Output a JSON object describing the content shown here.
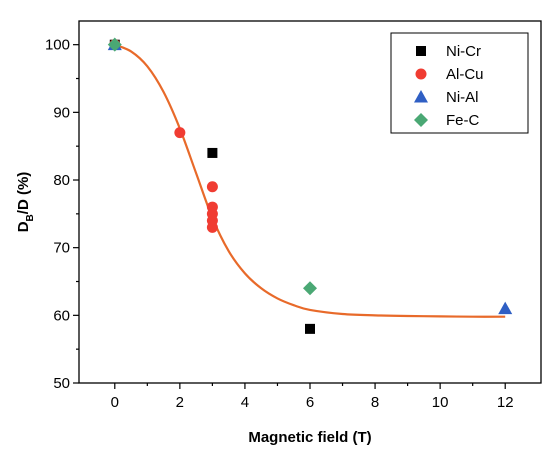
{
  "chart_data": {
    "type": "scatter",
    "xlabel": "Magnetic field (T)",
    "ylabel_main": "D",
    "ylabel_sub": "B",
    "ylabel_rest": "/D (%)",
    "xlim": [
      -1.1,
      13.1
    ],
    "ylim": [
      50,
      103.5
    ],
    "xticks": [
      0,
      2,
      4,
      6,
      8,
      10,
      12
    ],
    "yticks": [
      50,
      60,
      70,
      80,
      90,
      100
    ],
    "series": [
      {
        "name": "Ni-Cr",
        "marker": "square",
        "color": "#000000",
        "points": [
          [
            0,
            100
          ],
          [
            3,
            84
          ],
          [
            6,
            58
          ]
        ]
      },
      {
        "name": "Al-Cu",
        "marker": "circle",
        "color": "#f03c32",
        "points": [
          [
            0,
            100
          ],
          [
            2,
            87
          ],
          [
            3,
            79
          ],
          [
            3,
            76
          ],
          [
            3,
            75
          ],
          [
            3,
            74
          ],
          [
            3,
            73
          ]
        ]
      },
      {
        "name": "Ni-Al",
        "marker": "triangle",
        "color": "#2f5fc4",
        "points": [
          [
            0,
            100
          ],
          [
            12,
            61
          ]
        ]
      },
      {
        "name": "Fe-C",
        "marker": "diamond",
        "color": "#4aa874",
        "points": [
          [
            0,
            100
          ],
          [
            6,
            64
          ]
        ]
      }
    ],
    "fit_curve": {
      "color": "#e86a2a",
      "x": [
        0,
        0.5,
        1,
        1.5,
        2,
        2.5,
        3,
        3.5,
        4,
        4.5,
        5,
        5.5,
        6,
        7,
        8,
        9,
        10,
        11,
        12
      ],
      "y": [
        100,
        99,
        96.8,
        93,
        87.6,
        81,
        74.4,
        69.5,
        66.2,
        64,
        62.5,
        61.5,
        60.8,
        60.2,
        60.0,
        59.9,
        59.85,
        59.8,
        59.8
      ]
    },
    "legend_position": "top-right",
    "grid": false
  }
}
